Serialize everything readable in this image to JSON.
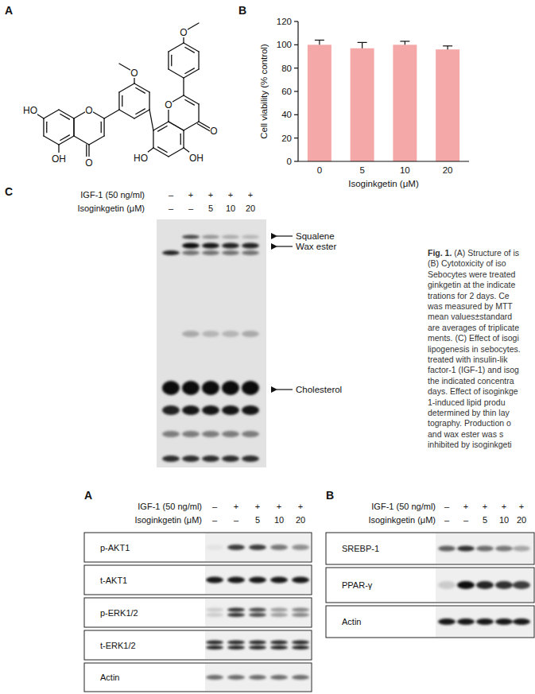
{
  "panel_labels": [
    "A",
    "B",
    "C",
    "A",
    "B"
  ],
  "structure": {
    "atoms": [
      "O",
      "O",
      "O",
      "HO",
      "OH",
      "O",
      "O",
      "HO",
      "OH",
      "O"
    ]
  },
  "chart_data": {
    "type": "bar",
    "categories": [
      "0",
      "5",
      "10",
      "20"
    ],
    "values": [
      100,
      97,
      100,
      96
    ],
    "errors": [
      4,
      5,
      3,
      3
    ],
    "color": "#f4a9a8",
    "x_label": "Isoginkgetin (μM)",
    "y_label": "Cell viability (% control)",
    "ylim": [
      0,
      120
    ],
    "yticks": [
      0,
      20,
      40,
      60,
      80,
      100,
      120
    ]
  },
  "tlc": {
    "treatments": [
      {
        "label": "IGF-1 (50 ng/ml)",
        "values": [
          "–",
          "+",
          "+",
          "+",
          "+"
        ]
      },
      {
        "label": "Isoginkgetin (μM)",
        "values": [
          "–",
          "–",
          "5",
          "10",
          "20"
        ]
      }
    ],
    "bands": [
      "Squalene",
      "Wax ester",
      "Cholesterol"
    ]
  },
  "caption": {
    "prefix": "Fig. 1.",
    "lines": [
      "(A) Structure of is",
      "(B) Cytotoxicity of iso",
      "Sebocytes were treated",
      "ginkgetin at the indicate",
      "trations for 2 days. Ce",
      "was measured by MTT",
      "mean values±standard",
      "are averages of triplicate",
      "ments. (C) Effect of isogi",
      "lipogenesis in sebocytes.",
      "treated with insulin-lik",
      "factor-1 (IGF-1) and isog",
      "the indicated concentra",
      "days. Effect of isoginkge",
      "1-induced lipid produ",
      "determined by thin lay",
      "tography. Production o",
      "and wax ester was s",
      "inhibited by isoginkgeti"
    ]
  },
  "blots": [
    {
      "treatments": [
        {
          "label": "IGF-1 (50 ng/ml)",
          "values": [
            "–",
            "+",
            "+",
            "+",
            "+"
          ]
        },
        {
          "label": "Isoginkgetin (μM)",
          "values": [
            "–",
            "–",
            "5",
            "10",
            "20"
          ]
        }
      ],
      "rows": [
        "p-AKT1",
        "t-AKT1",
        "p-ERK1/2",
        "t-ERK1/2",
        "Actin"
      ]
    },
    {
      "treatments": [
        {
          "label": "IGF-1 (50 ng/ml)",
          "values": [
            "–",
            "+",
            "+",
            "+",
            "+"
          ]
        },
        {
          "label": "Isoginkgetin (μM)",
          "values": [
            "–",
            "–",
            "5",
            "10",
            "20"
          ]
        }
      ],
      "rows": [
        "SREBP-1",
        "PPAR-γ",
        "Actin"
      ]
    }
  ]
}
